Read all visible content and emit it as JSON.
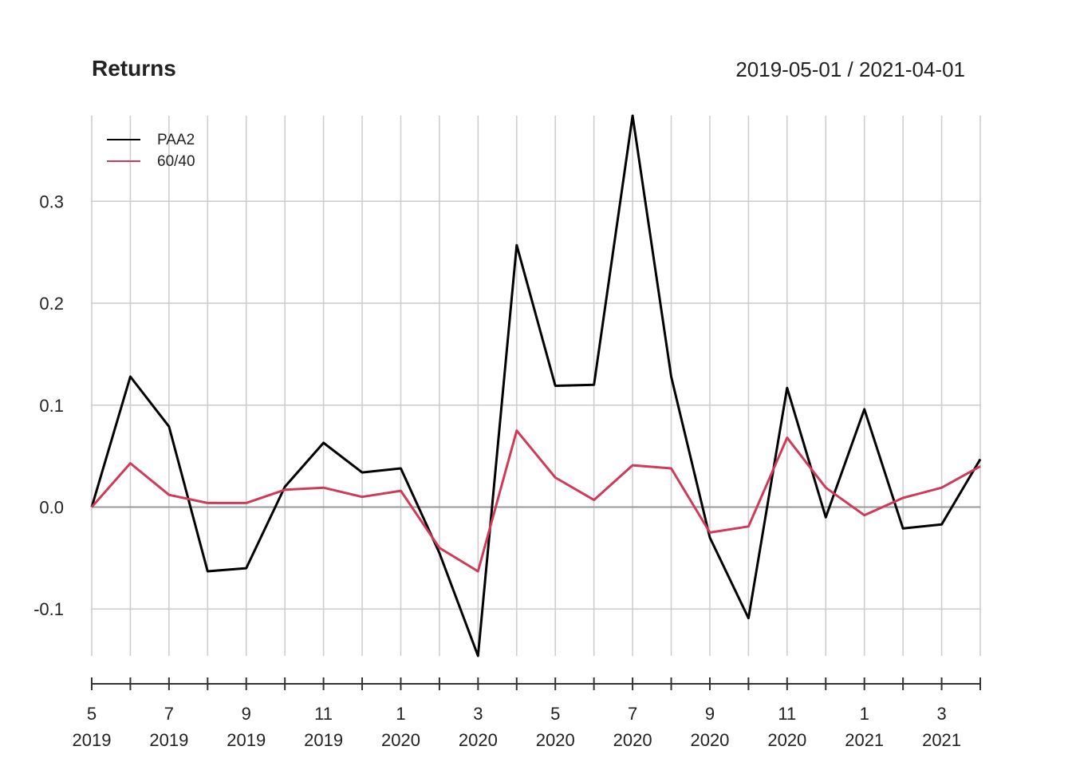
{
  "chart_data": {
    "type": "line",
    "title": "Returns",
    "date_range": "2019-05-01 / 2021-04-01",
    "xlabel": "",
    "ylabel": "",
    "x": [
      "2019-05-01",
      "2019-06-01",
      "2019-07-01",
      "2019-08-01",
      "2019-09-01",
      "2019-10-01",
      "2019-11-01",
      "2019-12-01",
      "2020-01-01",
      "2020-02-01",
      "2020-03-01",
      "2020-04-01",
      "2020-05-01",
      "2020-06-01",
      "2020-07-01",
      "2020-08-01",
      "2020-09-01",
      "2020-10-01",
      "2020-11-01",
      "2020-12-01",
      "2021-01-01",
      "2021-02-01",
      "2021-03-01",
      "2021-04-01"
    ],
    "series": [
      {
        "name": "PAA2",
        "color": "#000000",
        "values": [
          0.0,
          0.128,
          0.079,
          -0.063,
          -0.06,
          0.02,
          0.063,
          0.034,
          0.038,
          -0.045,
          -0.146,
          0.257,
          0.119,
          0.12,
          0.384,
          0.128,
          -0.03,
          -0.109,
          0.117,
          -0.01,
          0.096,
          -0.021,
          -0.017,
          0.047
        ]
      },
      {
        "name": "60/40",
        "color": "#d03a5a",
        "values": [
          0.0,
          0.043,
          0.012,
          0.004,
          0.004,
          0.017,
          0.019,
          0.01,
          0.016,
          -0.04,
          -0.063,
          0.075,
          0.029,
          0.007,
          0.041,
          0.038,
          -0.025,
          -0.019,
          0.068,
          0.019,
          -0.008,
          0.009,
          0.019,
          0.04
        ]
      }
    ],
    "yticks": [
      "-0.1",
      "0.0",
      "0.1",
      "0.2",
      "0.3"
    ],
    "ytick_values": [
      -0.1,
      0.0,
      0.1,
      0.2,
      0.3
    ],
    "ylim": [
      -0.146,
      0.384
    ],
    "xtick_labels": [
      {
        "month": "5",
        "year": "2019"
      },
      {
        "month": "7",
        "year": "2019"
      },
      {
        "month": "9",
        "year": "2019"
      },
      {
        "month": "11",
        "year": "2019"
      },
      {
        "month": "1",
        "year": "2020"
      },
      {
        "month": "3",
        "year": "2020"
      },
      {
        "month": "5",
        "year": "2020"
      },
      {
        "month": "7",
        "year": "2020"
      },
      {
        "month": "9",
        "year": "2020"
      },
      {
        "month": "11",
        "year": "2020"
      },
      {
        "month": "1",
        "year": "2021"
      },
      {
        "month": "3",
        "year": "2021"
      }
    ],
    "grid": true,
    "legend_position": "top-left",
    "colors": {
      "grid": "#cccccc",
      "zero_line": "#999999",
      "axis": "#333333"
    }
  }
}
